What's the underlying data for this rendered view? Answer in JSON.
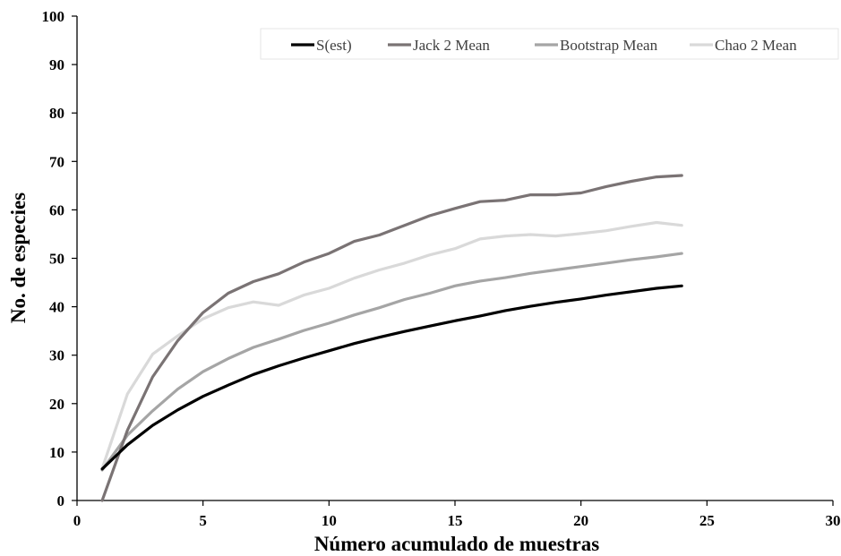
{
  "chart_data": {
    "type": "line",
    "title": "",
    "xlabel": "Número acumulado de muestras",
    "ylabel": "No. de especies",
    "xlim": [
      0,
      30
    ],
    "ylim": [
      0,
      100
    ],
    "x_ticks": [
      "0",
      "5",
      "10",
      "15",
      "20",
      "25",
      "30"
    ],
    "y_ticks": [
      "0",
      "10",
      "20",
      "30",
      "40",
      "50",
      "60",
      "70",
      "80",
      "90",
      "100"
    ],
    "grid": false,
    "legend_position": "top-right",
    "x": [
      1,
      2,
      3,
      4,
      5,
      6,
      7,
      8,
      9,
      10,
      11,
      12,
      13,
      14,
      15,
      16,
      17,
      18,
      19,
      20,
      21,
      22,
      23,
      24
    ],
    "series": [
      {
        "name": "S(est)",
        "color": "#000000",
        "values": [
          6.5,
          11.5,
          15.5,
          18.7,
          21.5,
          23.8,
          26,
          27.8,
          29.4,
          30.9,
          32.4,
          33.7,
          34.9,
          36,
          37.1,
          38.1,
          39.2,
          40.1,
          40.9,
          41.6,
          42.4,
          43.1,
          43.8,
          44.3
        ]
      },
      {
        "name": "Jack 2 Mean",
        "color": "#7a7374",
        "values": [
          0,
          14.5,
          25.5,
          33,
          38.8,
          42.8,
          45.2,
          46.8,
          49.2,
          51,
          53.5,
          54.8,
          56.8,
          58.8,
          60.3,
          61.7,
          62,
          63.1,
          63.1,
          63.5,
          64.8,
          65.9,
          66.8,
          67.1
        ]
      },
      {
        "name": "Bootstrap Mean",
        "color": "#a5a5a5",
        "values": [
          6.3,
          13.5,
          18.5,
          23,
          26.6,
          29.3,
          31.6,
          33.3,
          35.1,
          36.6,
          38.3,
          39.8,
          41.5,
          42.8,
          44.3,
          45.3,
          46,
          46.9,
          47.6,
          48.3,
          49,
          49.7,
          50.3,
          51
        ]
      },
      {
        "name": "Chao 2 Mean",
        "color": "#d9d9d9",
        "values": [
          6.6,
          22,
          30.2,
          34,
          37.5,
          39.8,
          41,
          40.3,
          42.4,
          43.8,
          45.9,
          47.6,
          49,
          50.7,
          52,
          54,
          54.6,
          54.9,
          54.6,
          55.1,
          55.7,
          56.6,
          57.4,
          56.8
        ]
      }
    ]
  }
}
